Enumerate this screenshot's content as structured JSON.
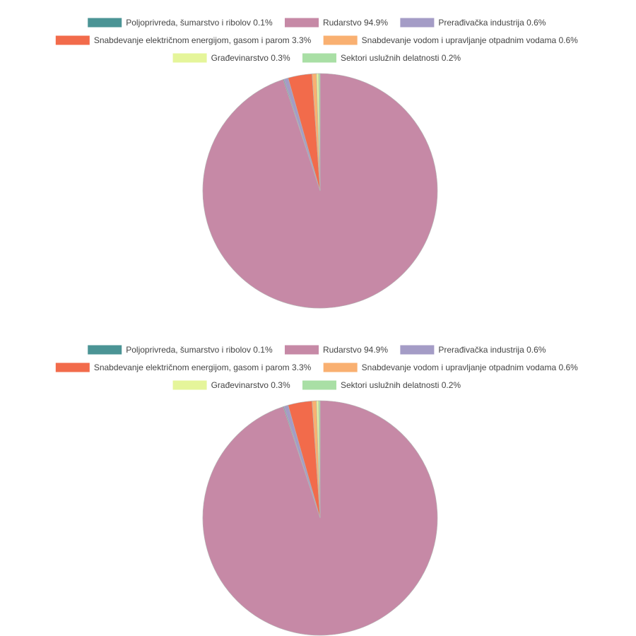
{
  "chart_data": [
    {
      "type": "pie",
      "title": "",
      "legend_position": "top",
      "slices": [
        {
          "label": "Poljoprivreda, šumarstvo i ribolov",
          "value": 0.1,
          "value_label": "0.1%",
          "color": "#4b9495"
        },
        {
          "label": "Rudarstvo",
          "value": 94.9,
          "value_label": "94.9%",
          "color": "#c689a6"
        },
        {
          "label": "Prerađivačka industrija",
          "value": 0.6,
          "value_label": "0.6%",
          "color": "#a49cc6"
        },
        {
          "label": "Snabdevanje električnom energijom, gasom i parom",
          "value": 3.3,
          "value_label": "3.3%",
          "color": "#f26b4b"
        },
        {
          "label": "Snabdevanje vodom i upravljanje otpadnim vodama",
          "value": 0.6,
          "value_label": "0.6%",
          "color": "#f9b071"
        },
        {
          "label": "Građevinarstvo",
          "value": 0.3,
          "value_label": "0.3%",
          "color": "#e5f59a"
        },
        {
          "label": "Sektori uslužnih delatnosti",
          "value": 0.2,
          "value_label": "0.2%",
          "color": "#a9dfa5"
        }
      ]
    },
    {
      "type": "pie",
      "title": "",
      "legend_position": "top",
      "slices": [
        {
          "label": "Poljoprivreda, šumarstvo i ribolov",
          "value": 0.1,
          "value_label": "0.1%",
          "color": "#4b9495"
        },
        {
          "label": "Rudarstvo",
          "value": 94.9,
          "value_label": "94.9%",
          "color": "#c689a6"
        },
        {
          "label": "Prerađivačka industrija",
          "value": 0.6,
          "value_label": "0.6%",
          "color": "#a49cc6"
        },
        {
          "label": "Snabdevanje električnom energijom, gasom i parom",
          "value": 3.3,
          "value_label": "3.3%",
          "color": "#f26b4b"
        },
        {
          "label": "Snabdevanje vodom i upravljanje otpadnim vodama",
          "value": 0.6,
          "value_label": "0.6%",
          "color": "#f9b071"
        },
        {
          "label": "Građevinarstvo",
          "value": 0.3,
          "value_label": "0.3%",
          "color": "#e5f59a"
        },
        {
          "label": "Sektori uslužnih delatnosti",
          "value": 0.2,
          "value_label": "0.2%",
          "color": "#a9dfa5"
        }
      ]
    }
  ]
}
